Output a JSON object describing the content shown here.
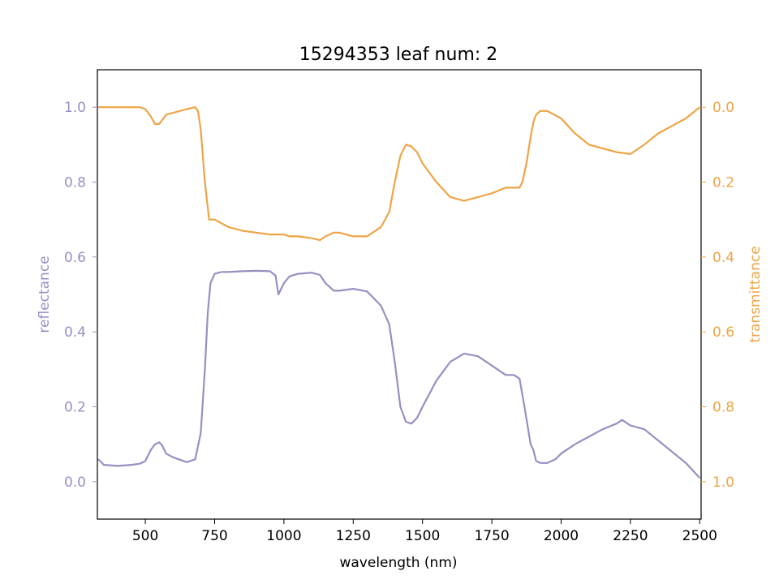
{
  "chart_data": {
    "type": "line",
    "title": "15294353 leaf num: 2",
    "xlabel": "wavelength (nm)",
    "ylabel_left": "reflectance",
    "ylabel_right": "transmittance",
    "xlim": [
      327,
      2505
    ],
    "ylim_left": [
      -0.1,
      1.1
    ],
    "ylim_right": [
      1.1,
      -0.1
    ],
    "x_ticks": [
      500,
      750,
      1000,
      1250,
      1500,
      1750,
      2000,
      2250,
      2500
    ],
    "y_ticks_left": [
      0.0,
      0.2,
      0.4,
      0.6,
      0.8,
      1.0
    ],
    "y_ticks_right": [
      0.0,
      0.2,
      0.4,
      0.6,
      0.8,
      1.0
    ],
    "tick_format_y": "1f",
    "grid": false,
    "colors": {
      "reflectance": "#9491c2",
      "transmittance": "#eea446",
      "axes": "#000000"
    },
    "series": [
      {
        "key": "reflectance",
        "axis": "left",
        "x": [
          330,
          350,
          400,
          450,
          480,
          500,
          520,
          535,
          550,
          560,
          575,
          600,
          650,
          680,
          700,
          715,
          725,
          735,
          750,
          775,
          800,
          850,
          900,
          950,
          970,
          980,
          1000,
          1020,
          1050,
          1100,
          1130,
          1150,
          1180,
          1200,
          1250,
          1300,
          1350,
          1380,
          1400,
          1420,
          1440,
          1460,
          1480,
          1500,
          1550,
          1600,
          1650,
          1700,
          1750,
          1800,
          1830,
          1850,
          1870,
          1890,
          1900,
          1910,
          1925,
          1950,
          1980,
          2000,
          2050,
          2100,
          2150,
          2200,
          2220,
          2250,
          2300,
          2350,
          2400,
          2450,
          2500
        ],
        "y": [
          0.06,
          0.045,
          0.042,
          0.045,
          0.048,
          0.055,
          0.085,
          0.1,
          0.105,
          0.098,
          0.075,
          0.065,
          0.052,
          0.06,
          0.13,
          0.3,
          0.45,
          0.53,
          0.555,
          0.56,
          0.56,
          0.562,
          0.563,
          0.562,
          0.55,
          0.5,
          0.53,
          0.548,
          0.555,
          0.558,
          0.552,
          0.53,
          0.51,
          0.51,
          0.515,
          0.508,
          0.47,
          0.42,
          0.32,
          0.2,
          0.16,
          0.155,
          0.17,
          0.2,
          0.27,
          0.32,
          0.342,
          0.335,
          0.31,
          0.285,
          0.285,
          0.275,
          0.19,
          0.1,
          0.085,
          0.055,
          0.05,
          0.05,
          0.06,
          0.075,
          0.1,
          0.12,
          0.14,
          0.155,
          0.165,
          0.15,
          0.14,
          0.11,
          0.08,
          0.05,
          0.01
        ]
      },
      {
        "key": "transmittance",
        "axis": "right",
        "x": [
          330,
          350,
          400,
          450,
          480,
          500,
          520,
          535,
          550,
          560,
          575,
          600,
          650,
          680,
          690,
          700,
          715,
          730,
          750,
          775,
          800,
          850,
          900,
          950,
          970,
          980,
          1000,
          1020,
          1050,
          1100,
          1130,
          1150,
          1180,
          1200,
          1250,
          1300,
          1350,
          1380,
          1400,
          1420,
          1440,
          1460,
          1480,
          1500,
          1550,
          1600,
          1650,
          1700,
          1750,
          1800,
          1850,
          1860,
          1875,
          1890,
          1900,
          1910,
          1925,
          1950,
          2000,
          2050,
          2100,
          2150,
          2200,
          2250,
          2300,
          2350,
          2400,
          2450,
          2500
        ],
        "y": [
          0.0,
          0.0,
          0.0,
          0.0,
          0.0,
          0.005,
          0.025,
          0.045,
          0.045,
          0.035,
          0.02,
          0.015,
          0.005,
          0.0,
          0.01,
          0.06,
          0.2,
          0.3,
          0.3,
          0.31,
          0.32,
          0.33,
          0.335,
          0.34,
          0.34,
          0.34,
          0.34,
          0.345,
          0.345,
          0.35,
          0.355,
          0.345,
          0.335,
          0.335,
          0.345,
          0.345,
          0.32,
          0.28,
          0.2,
          0.13,
          0.1,
          0.105,
          0.12,
          0.15,
          0.2,
          0.24,
          0.25,
          0.24,
          0.23,
          0.215,
          0.215,
          0.2,
          0.15,
          0.08,
          0.04,
          0.02,
          0.01,
          0.01,
          0.03,
          0.07,
          0.1,
          0.11,
          0.12,
          0.125,
          0.1,
          0.07,
          0.05,
          0.03,
          0.0
        ]
      }
    ]
  }
}
